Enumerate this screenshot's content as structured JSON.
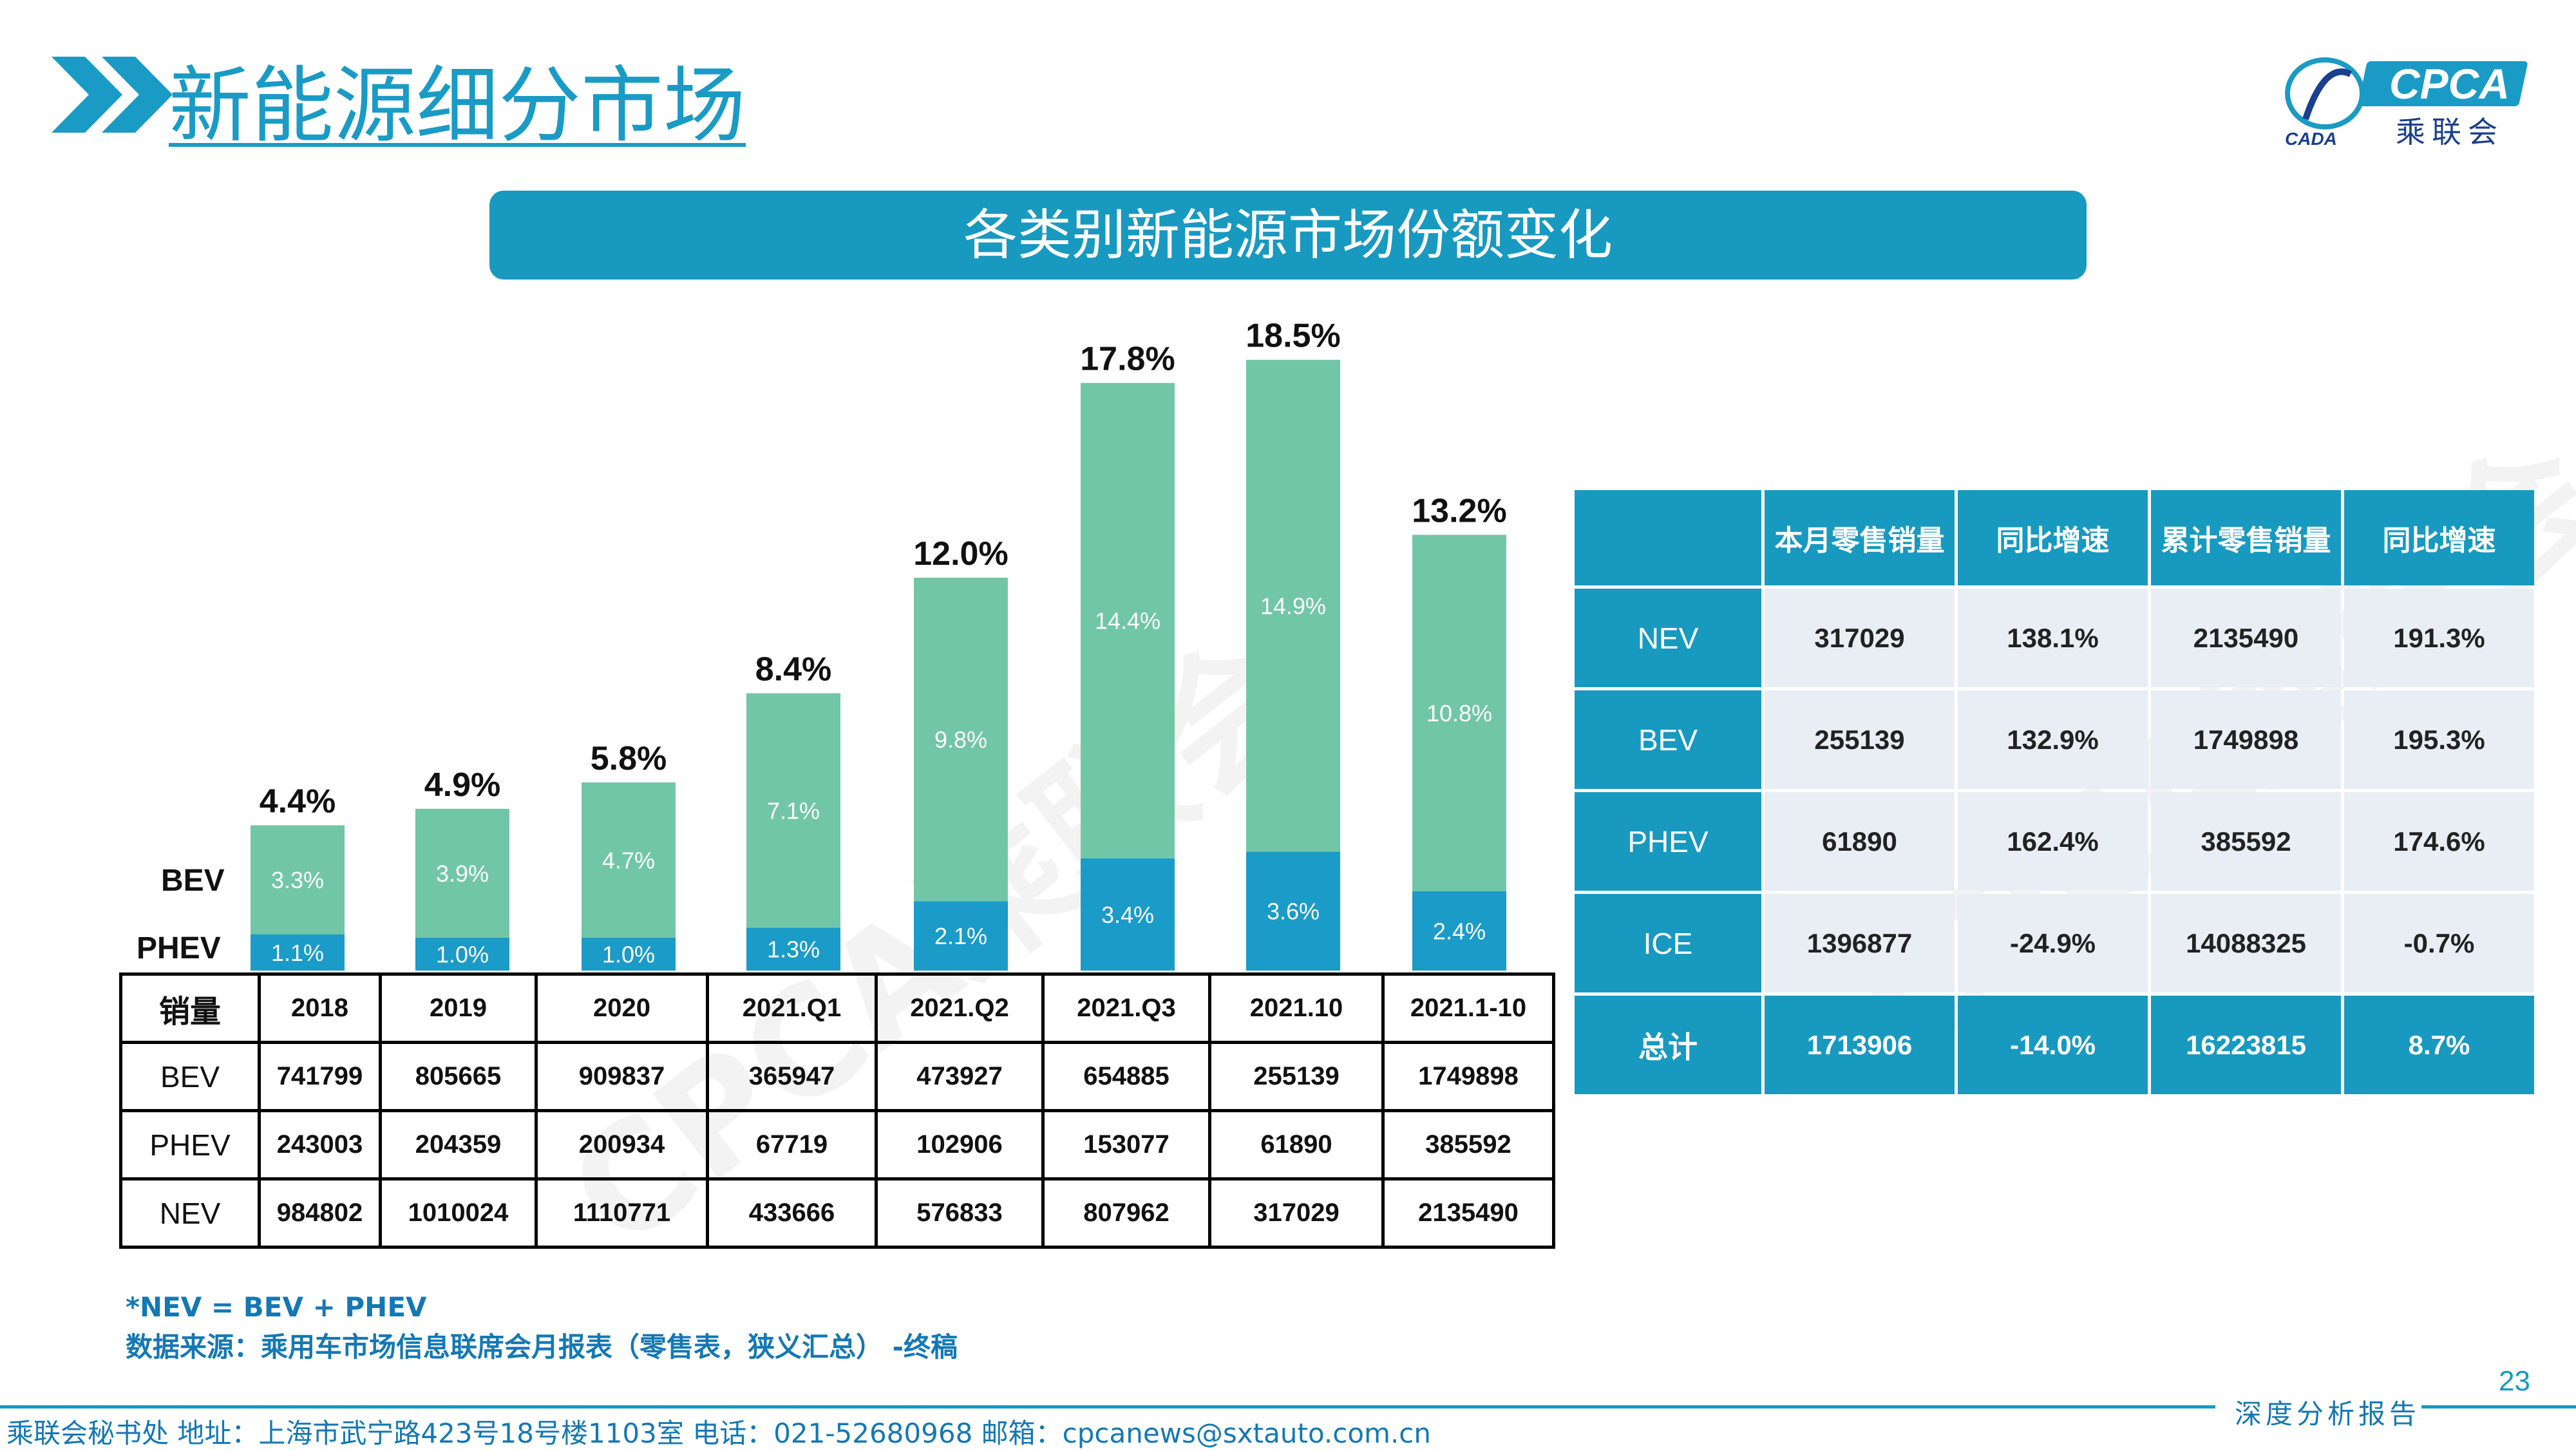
{
  "header": {
    "title": "新能源细分市场",
    "logo": {
      "text": "CPCA",
      "sub": "乘联会",
      "mark": "CADA"
    }
  },
  "banner": {
    "title": "各类别新能源市场份额变化"
  },
  "chart_data": {
    "type": "bar",
    "stacked": true,
    "categories": [
      "2018",
      "2019",
      "2020",
      "2021.Q1",
      "2021.Q2",
      "2021.Q3",
      "2021.10",
      "2021.1-10"
    ],
    "series": [
      {
        "name": "PHEV",
        "values": [
          1.1,
          1.0,
          1.0,
          1.3,
          2.1,
          3.4,
          3.6,
          2.4
        ],
        "labels": [
          "1.1%",
          "1.0%",
          "1.0%",
          "1.3%",
          "2.1%",
          "3.4%",
          "3.6%",
          "2.4%"
        ],
        "color": "#1a9bc8"
      },
      {
        "name": "BEV",
        "values": [
          3.3,
          3.9,
          4.7,
          7.1,
          9.8,
          14.4,
          14.9,
          10.8
        ],
        "labels": [
          "3.3%",
          "3.9%",
          "4.7%",
          "7.1%",
          "9.8%",
          "14.4%",
          "14.9%",
          "10.8%"
        ],
        "color": "#72c6a8"
      }
    ],
    "totals": [
      4.4,
      4.9,
      5.8,
      8.4,
      12.0,
      17.8,
      18.5,
      13.2
    ],
    "total_labels": [
      "4.4%",
      "4.9%",
      "5.8%",
      "8.4%",
      "12.0%",
      "17.8%",
      "18.5%",
      "13.2%"
    ],
    "ylim": [
      0,
      20
    ],
    "grid": false,
    "legend": "left"
  },
  "sales_table": {
    "corner": "销量",
    "columns": [
      "2018",
      "2019",
      "2020",
      "2021.Q1",
      "2021.Q2",
      "2021.Q3",
      "2021.10",
      "2021.1-10"
    ],
    "rows": [
      {
        "label": "BEV",
        "values": [
          "741799",
          "805665",
          "909837",
          "365947",
          "473927",
          "654885",
          "255139",
          "1749898"
        ]
      },
      {
        "label": "PHEV",
        "values": [
          "243003",
          "204359",
          "200934",
          "67719",
          "102906",
          "153077",
          "61890",
          "385592"
        ]
      },
      {
        "label": "NEV",
        "values": [
          "984802",
          "1010024",
          "1110771",
          "433666",
          "576833",
          "807962",
          "317029",
          "2135490"
        ]
      }
    ]
  },
  "share_table": {
    "headers": [
      "",
      "本月零售销量",
      "同比增速",
      "累计零售销量",
      "同比增速"
    ],
    "rows": [
      {
        "label": "NEV",
        "values": [
          "317029",
          "138.1%",
          "2135490",
          "191.3%"
        ]
      },
      {
        "label": "BEV",
        "values": [
          "255139",
          "132.9%",
          "1749898",
          "195.3%"
        ]
      },
      {
        "label": "PHEV",
        "values": [
          "61890",
          "162.4%",
          "385592",
          "174.6%"
        ]
      },
      {
        "label": "ICE",
        "values": [
          "1396877",
          "-24.9%",
          "14088325",
          "-0.7%"
        ]
      },
      {
        "label": "总计",
        "values": [
          "1713906",
          "-14.0%",
          "16223815",
          "8.7%"
        ]
      }
    ]
  },
  "notes": {
    "formula": "*NEV = BEV + PHEV",
    "source": "数据来源：乘用车市场信息联席会月报表（零售表，狭义汇总） -终稿"
  },
  "footer": {
    "text": "乘联会秘书处   地址：上海市武宁路423号18号楼1103室  电话：021-52680968   邮箱：cpcanews@sxtauto.com.cn",
    "tag": "深度分析报告",
    "page_number": "23"
  },
  "watermark": "CPCA乘联会",
  "colors": {
    "accent": "#1899c0",
    "phev": "#1a9bc8",
    "bev": "#72c6a8",
    "cell_bg": "#e8eef4"
  }
}
